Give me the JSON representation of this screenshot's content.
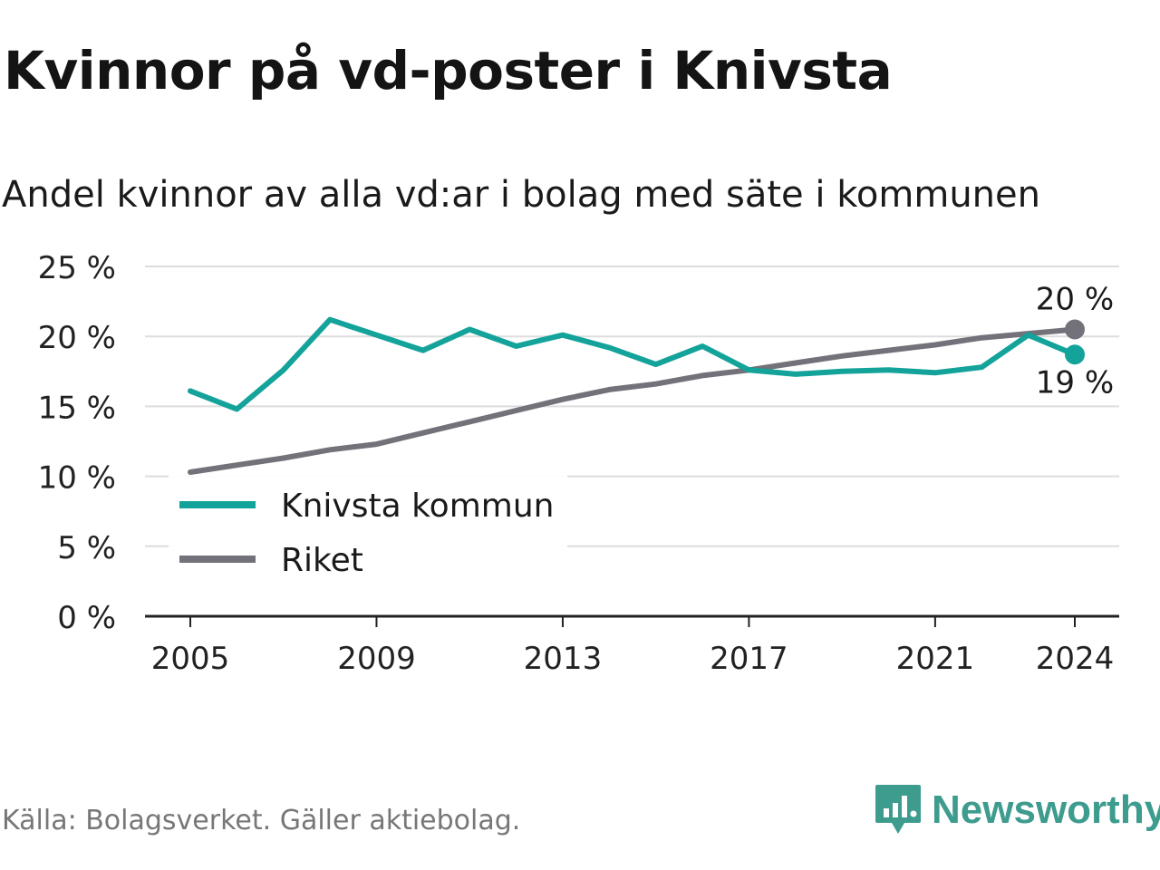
{
  "title": "Kvinnor på vd-poster i Knivsta",
  "subtitle": "Andel kvinnor av alla vd:ar i bolag med säte i kommunen",
  "source": "Källa: Bolagsverket. Gäller aktiebolag.",
  "brand": {
    "name": "Newsworthy"
  },
  "colors": {
    "knivsta": "#13a39a",
    "riket": "#737179",
    "grid": "#dddddd",
    "axis": "#222222",
    "brand": "#3e9c8e"
  },
  "chart_data": {
    "type": "line",
    "title": "Kvinnor på vd-poster i Knivsta",
    "subtitle": "Andel kvinnor av alla vd:ar i bolag med säte i kommunen",
    "xlabel": "",
    "ylabel": "",
    "x": [
      2005,
      2006,
      2007,
      2008,
      2009,
      2010,
      2011,
      2012,
      2013,
      2014,
      2015,
      2016,
      2017,
      2018,
      2019,
      2020,
      2021,
      2022,
      2023,
      2024
    ],
    "xticks": [
      2005,
      2009,
      2013,
      2017,
      2021,
      2024
    ],
    "xtick_labels": [
      "2005",
      "2009",
      "2013",
      "2017",
      "2021",
      "2024"
    ],
    "ylim": [
      0,
      25
    ],
    "yticks": [
      0,
      5,
      10,
      15,
      20,
      25
    ],
    "ytick_labels": [
      "0 %",
      "5 %",
      "10 %",
      "15 %",
      "20 %",
      "25 %"
    ],
    "grid": true,
    "legend_position": "bottom-left",
    "series": [
      {
        "name": "Knivsta kommun",
        "color": "#13a39a",
        "values": [
          16.1,
          14.8,
          17.6,
          21.2,
          20.1,
          19.0,
          20.5,
          19.3,
          20.1,
          19.2,
          18.0,
          19.3,
          17.6,
          17.3,
          17.5,
          17.6,
          17.4,
          17.8,
          20.1,
          18.7
        ],
        "end_label": "19 %"
      },
      {
        "name": "Riket",
        "color": "#737179",
        "values": [
          10.3,
          10.8,
          11.3,
          11.9,
          12.3,
          13.1,
          13.9,
          14.7,
          15.5,
          16.2,
          16.6,
          17.2,
          17.6,
          18.1,
          18.6,
          19.0,
          19.4,
          19.9,
          20.2,
          20.5
        ],
        "end_label": "20 %"
      }
    ]
  }
}
